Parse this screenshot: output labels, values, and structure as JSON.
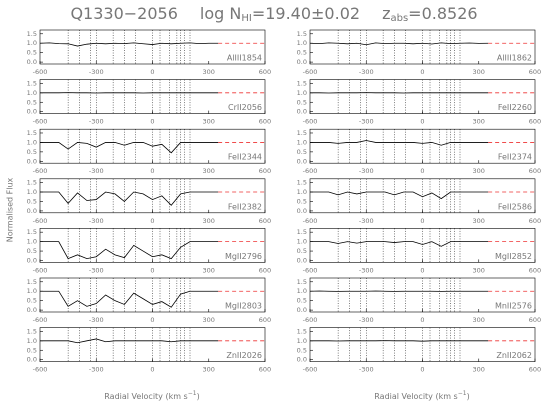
{
  "title_parts": [
    "Q1330−2056",
    "log N",
    "HI",
    "=19.40±0.02",
    "z",
    "abs",
    "=0.8526"
  ],
  "y_label": "Normalised Flux",
  "x_label_parts": [
    "Radial Velocity (km s",
    "−1",
    ")"
  ],
  "component_velocities": [
    -450,
    -390,
    -330,
    -300,
    -210,
    -150,
    -90,
    0,
    40,
    90,
    130,
    150,
    170,
    200
  ],
  "continuum": {
    "x": [
      350,
      600
    ],
    "value": 1
  },
  "chart_data": [
    {
      "type": "line",
      "label": "AlIII1854",
      "color": "#000",
      "xlim": [
        -600,
        600
      ],
      "ylim": [
        -0.1,
        1.7
      ],
      "xticks": [
        -600,
        -300,
        0,
        300,
        600
      ],
      "yticks": [
        {
          "value": 0,
          "label": "0.0"
        },
        0.5,
        {
          "value": 1,
          "label": "1.0"
        },
        1.5
      ],
      "x": [
        -600,
        -550,
        -500,
        -450,
        -400,
        -350,
        -300,
        -250,
        -200,
        -150,
        -100,
        -50,
        0,
        50,
        100,
        150,
        200,
        250,
        300,
        350
      ],
      "values": [
        1,
        1.02,
        0.98,
        0.97,
        0.85,
        0.95,
        1,
        0.97,
        1,
        0.98,
        1.02,
        0.97,
        0.93,
        1,
        0.97,
        1,
        1.02,
        0.98,
        1,
        1
      ]
    },
    {
      "type": "line",
      "label": "AlIII1862",
      "color": "#000",
      "xlim": [
        -600,
        600
      ],
      "ylim": [
        -0.1,
        1.7
      ],
      "xticks": [
        -600,
        -300,
        0,
        300,
        600
      ],
      "yticks": [
        {
          "value": 0,
          "label": "0.0"
        },
        0.5,
        {
          "value": 1,
          "label": "1.0"
        },
        1.5
      ],
      "x": [
        -600,
        -550,
        -500,
        -450,
        -400,
        -350,
        -300,
        -250,
        -200,
        -150,
        -100,
        -50,
        0,
        50,
        100,
        150,
        200,
        250,
        300,
        350
      ],
      "values": [
        1,
        0.98,
        1.02,
        1,
        0.97,
        1,
        0.92,
        1.02,
        0.98,
        1,
        1,
        0.97,
        1,
        0.96,
        1.02,
        0.98,
        1,
        1.01,
        0.99,
        1
      ]
    },
    {
      "type": "line",
      "label": "CrII2056",
      "color": "#000",
      "xlim": [
        -600,
        600
      ],
      "ylim": [
        -0.1,
        1.7
      ],
      "xticks": [
        -600,
        -300,
        0,
        300,
        600
      ],
      "yticks": [
        {
          "value": 0,
          "label": "0.0"
        },
        0.5,
        {
          "value": 1,
          "label": "1.0"
        },
        1.5
      ],
      "x": [
        -600,
        -550,
        -500,
        -450,
        -400,
        -350,
        -300,
        -250,
        -200,
        -150,
        -100,
        -50,
        0,
        50,
        100,
        150,
        200,
        250,
        300,
        350
      ],
      "values": [
        1,
        1,
        1,
        1.01,
        1,
        1,
        0.99,
        1,
        1,
        1,
        1,
        0.99,
        1,
        1,
        1,
        1,
        1,
        1,
        1,
        1
      ]
    },
    {
      "type": "line",
      "label": "FeII2260",
      "color": "#000",
      "xlim": [
        -600,
        600
      ],
      "ylim": [
        -0.1,
        1.7
      ],
      "xticks": [
        -600,
        -300,
        0,
        300,
        600
      ],
      "yticks": [
        {
          "value": 0,
          "label": "0.0"
        },
        0.5,
        {
          "value": 1,
          "label": "1.0"
        },
        1.5
      ],
      "x": [
        -600,
        -550,
        -500,
        -450,
        -400,
        -350,
        -300,
        -250,
        -200,
        -150,
        -100,
        -50,
        0,
        50,
        100,
        150,
        200,
        250,
        300,
        350
      ],
      "values": [
        1,
        1,
        0.99,
        1,
        1,
        1,
        1.01,
        1,
        1,
        1,
        0.99,
        1,
        1,
        1,
        1,
        1,
        1,
        1,
        1,
        1
      ]
    },
    {
      "type": "line",
      "label": "FeII2344",
      "color": "#000",
      "xlim": [
        -600,
        600
      ],
      "ylim": [
        -0.1,
        1.7
      ],
      "xticks": [
        -600,
        -300,
        0,
        300,
        600
      ],
      "yticks": [
        {
          "value": 0,
          "label": "0.0"
        },
        0.5,
        {
          "value": 1,
          "label": "1.0"
        },
        1.5
      ],
      "x": [
        -600,
        -550,
        -500,
        -450,
        -400,
        -350,
        -300,
        -250,
        -200,
        -150,
        -100,
        -50,
        0,
        50,
        100,
        150,
        200,
        250,
        300,
        350
      ],
      "values": [
        1,
        1,
        1,
        0.65,
        1,
        0.95,
        0.75,
        1,
        1,
        0.85,
        1,
        1,
        0.8,
        0.9,
        0.45,
        1,
        1,
        1,
        1,
        1
      ]
    },
    {
      "type": "line",
      "label": "FeII2374",
      "color": "#000",
      "xlim": [
        -600,
        600
      ],
      "ylim": [
        -0.1,
        1.7
      ],
      "xticks": [
        -600,
        -300,
        0,
        300,
        600
      ],
      "yticks": [
        {
          "value": 0,
          "label": "0.0"
        },
        0.5,
        {
          "value": 1,
          "label": "1.0"
        },
        1.5
      ],
      "x": [
        -600,
        -550,
        -500,
        -450,
        -400,
        -350,
        -300,
        -250,
        -200,
        -150,
        -100,
        -50,
        0,
        50,
        100,
        150,
        200,
        250,
        300,
        350
      ],
      "values": [
        1,
        1,
        1,
        0.95,
        1,
        1,
        1.1,
        1,
        1,
        1,
        1,
        1,
        0.95,
        1,
        0.85,
        1,
        1,
        1,
        1,
        1
      ]
    },
    {
      "type": "line",
      "label": "FeII2382",
      "color": "#000",
      "xlim": [
        -600,
        600
      ],
      "ylim": [
        -0.1,
        1.7
      ],
      "xticks": [
        -600,
        -300,
        0,
        300,
        600
      ],
      "yticks": [
        {
          "value": 0,
          "label": "0.0"
        },
        0.5,
        {
          "value": 1,
          "label": "1.0"
        },
        1.5
      ],
      "x": [
        -600,
        -550,
        -500,
        -450,
        -400,
        -350,
        -300,
        -250,
        -200,
        -150,
        -100,
        -50,
        0,
        50,
        100,
        150,
        200,
        250,
        300,
        350
      ],
      "values": [
        1,
        1,
        1,
        0.4,
        0.95,
        0.55,
        0.6,
        1,
        0.9,
        0.5,
        1,
        0.9,
        0.6,
        0.8,
        0.3,
        0.9,
        1,
        1,
        1,
        1
      ]
    },
    {
      "type": "line",
      "label": "FeII2586",
      "color": "#000",
      "xlim": [
        -600,
        600
      ],
      "ylim": [
        -0.1,
        1.7
      ],
      "xticks": [
        -600,
        -300,
        0,
        300,
        600
      ],
      "yticks": [
        {
          "value": 0,
          "label": "0.0"
        },
        0.5,
        {
          "value": 1,
          "label": "1.0"
        },
        1.5
      ],
      "x": [
        -600,
        -550,
        -500,
        -450,
        -400,
        -350,
        -300,
        -250,
        -200,
        -150,
        -100,
        -50,
        0,
        50,
        100,
        150,
        200,
        250,
        300,
        350
      ],
      "values": [
        1,
        1,
        1,
        0.85,
        1,
        0.9,
        1,
        1,
        1,
        0.85,
        1,
        1,
        0.75,
        0.95,
        0.65,
        1,
        1,
        1,
        1,
        1
      ]
    },
    {
      "type": "line",
      "label": "MgII2796",
      "color": "#000",
      "xlim": [
        -600,
        600
      ],
      "ylim": [
        -0.1,
        1.7
      ],
      "xticks": [
        -600,
        -300,
        0,
        300,
        600
      ],
      "yticks": [
        {
          "value": 0,
          "label": "0.0"
        },
        0.5,
        {
          "value": 1,
          "label": "1.0"
        },
        1.5
      ],
      "x": [
        -600,
        -550,
        -500,
        -450,
        -400,
        -350,
        -300,
        -250,
        -200,
        -150,
        -100,
        -50,
        0,
        50,
        100,
        150,
        200,
        250,
        300,
        350
      ],
      "values": [
        1,
        1,
        1,
        0.1,
        0.3,
        0.1,
        0.2,
        0.6,
        0.3,
        0.15,
        0.8,
        0.5,
        0.2,
        0.3,
        0.1,
        0.7,
        1,
        1,
        1,
        1
      ]
    },
    {
      "type": "line",
      "label": "MgII2852",
      "color": "#000",
      "xlim": [
        -600,
        600
      ],
      "ylim": [
        -0.1,
        1.7
      ],
      "xticks": [
        -600,
        -300,
        0,
        300,
        600
      ],
      "yticks": [
        {
          "value": 0,
          "label": "0.0"
        },
        0.5,
        {
          "value": 1,
          "label": "1.0"
        },
        1.5
      ],
      "x": [
        -600,
        -550,
        -500,
        -450,
        -400,
        -350,
        -300,
        -250,
        -200,
        -150,
        -100,
        -50,
        0,
        50,
        100,
        150,
        200,
        250,
        300,
        350
      ],
      "values": [
        1,
        1,
        1,
        0.9,
        1,
        0.92,
        1,
        1,
        1,
        0.95,
        1,
        1,
        0.85,
        1,
        0.75,
        1,
        1,
        1,
        1,
        1
      ]
    },
    {
      "type": "line",
      "label": "MgII2803",
      "color": "#000",
      "xlim": [
        -600,
        600
      ],
      "ylim": [
        -0.1,
        1.7
      ],
      "xticks": [
        -600,
        -300,
        0,
        300,
        600
      ],
      "yticks": [
        {
          "value": 0,
          "label": "0.0"
        },
        0.5,
        {
          "value": 1,
          "label": "1.0"
        },
        1.5
      ],
      "x": [
        -600,
        -550,
        -500,
        -450,
        -400,
        -350,
        -300,
        -250,
        -200,
        -150,
        -100,
        -50,
        0,
        50,
        100,
        150,
        200,
        250,
        300,
        350
      ],
      "values": [
        1,
        1,
        1,
        0.2,
        0.5,
        0.2,
        0.35,
        0.8,
        0.5,
        0.3,
        0.9,
        0.6,
        0.3,
        0.45,
        0.15,
        0.85,
        1,
        1,
        1,
        1
      ]
    },
    {
      "type": "line",
      "label": "MnII2576",
      "color": "#000",
      "xlim": [
        -600,
        600
      ],
      "ylim": [
        -0.1,
        1.7
      ],
      "xticks": [
        -600,
        -300,
        0,
        300,
        600
      ],
      "yticks": [
        {
          "value": 0,
          "label": "0.0"
        },
        0.5,
        {
          "value": 1,
          "label": "1.0"
        },
        1.5
      ],
      "x": [
        -600,
        -550,
        -500,
        -450,
        -400,
        -350,
        -300,
        -250,
        -200,
        -150,
        -100,
        -50,
        0,
        50,
        100,
        150,
        200,
        250,
        300,
        350
      ],
      "values": [
        1,
        1.01,
        1,
        0.99,
        1,
        1,
        1,
        1.01,
        1,
        0.99,
        1,
        1,
        1,
        1,
        0.99,
        1,
        1,
        1,
        1,
        1
      ]
    },
    {
      "type": "line",
      "label": "ZnII2026",
      "color": "#000",
      "xlim": [
        -600,
        600
      ],
      "ylim": [
        -0.1,
        1.7
      ],
      "xticks": [
        -600,
        -300,
        0,
        300,
        600
      ],
      "yticks": [
        {
          "value": 0,
          "label": "0.0"
        },
        0.5,
        {
          "value": 1,
          "label": "1.0"
        },
        1.5
      ],
      "x": [
        -600,
        -550,
        -500,
        -450,
        -400,
        -350,
        -300,
        -250,
        -200,
        -150,
        -100,
        -50,
        0,
        50,
        100,
        150,
        200,
        250,
        300,
        350
      ],
      "values": [
        1,
        1,
        1,
        1,
        0.9,
        1,
        1.1,
        0.95,
        1,
        1,
        1,
        1,
        1,
        1,
        0.95,
        1,
        1,
        1,
        1,
        1
      ]
    },
    {
      "type": "line",
      "label": "ZnII2062",
      "color": "#000",
      "xlim": [
        -600,
        600
      ],
      "ylim": [
        -0.1,
        1.7
      ],
      "xticks": [
        -600,
        -300,
        0,
        300,
        600
      ],
      "yticks": [
        {
          "value": 0,
          "label": "0.0"
        },
        0.5,
        {
          "value": 1,
          "label": "1.0"
        },
        1.5
      ],
      "x": [
        -600,
        -550,
        -500,
        -450,
        -400,
        -350,
        -300,
        -250,
        -200,
        -150,
        -100,
        -50,
        0,
        50,
        100,
        150,
        200,
        250,
        300,
        350
      ],
      "values": [
        1,
        1,
        1,
        0.99,
        1,
        1,
        1,
        1,
        1.01,
        1,
        1,
        1,
        0.98,
        1,
        1,
        1,
        1,
        1,
        1,
        1
      ]
    }
  ]
}
